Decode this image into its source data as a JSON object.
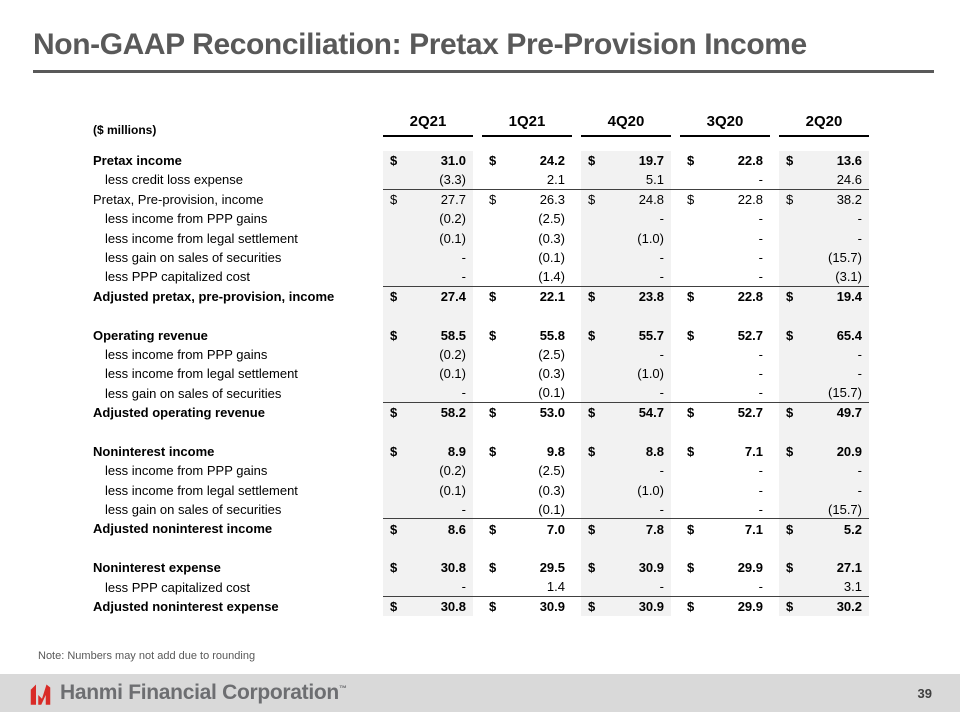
{
  "slide": {
    "title": "Non-GAAP Reconciliation: Pretax Pre-Provision Income",
    "note": "Note: Numbers may not add due to rounding",
    "page_number": "39",
    "footer_brand": "Hanmi Financial Corporation",
    "trademark": "™",
    "colors": {
      "accent_red": "#d92b27",
      "column_shade": "#f2f2f2",
      "footer_bar": "#d9d9d9",
      "title_gray": "#595959"
    },
    "icons": {
      "logo": "hanmi-logo-icon"
    }
  },
  "table": {
    "units_label": "($ millions)",
    "dollar_sign": "$",
    "columns": [
      "2Q21",
      "1Q21",
      "4Q20",
      "3Q20",
      "2Q20"
    ],
    "shaded_columns": [
      0,
      2,
      4
    ],
    "rows": [
      {
        "label": "Pretax income",
        "bold": true,
        "dollar": true,
        "values": [
          "31.0",
          "24.2",
          "19.7",
          "22.8",
          "13.6"
        ]
      },
      {
        "label": "less credit loss expense",
        "indent": true,
        "values": [
          "(3.3)",
          "2.1",
          "5.1",
          "-",
          "24.6"
        ],
        "line_below": true
      },
      {
        "label": "Pretax, Pre-provision, income",
        "dollar": true,
        "values": [
          "27.7",
          "26.3",
          "24.8",
          "22.8",
          "38.2"
        ]
      },
      {
        "label": "less income from PPP gains",
        "indent": true,
        "values": [
          "(0.2)",
          "(2.5)",
          "-",
          "-",
          "-"
        ]
      },
      {
        "label": "less income from legal settlement",
        "indent": true,
        "values": [
          "(0.1)",
          "(0.3)",
          "(1.0)",
          "-",
          "-"
        ]
      },
      {
        "label": "less gain on sales of securities",
        "indent": true,
        "values": [
          "-",
          "(0.1)",
          "-",
          "-",
          "(15.7)"
        ]
      },
      {
        "label": "less PPP capitalized cost",
        "indent": true,
        "values": [
          "-",
          "(1.4)",
          "-",
          "-",
          "(3.1)"
        ],
        "line_below": true
      },
      {
        "label": "Adjusted pretax, pre-provision, income",
        "bold": true,
        "dollar": true,
        "values": [
          "27.4",
          "22.1",
          "23.8",
          "22.8",
          "19.4"
        ]
      },
      {
        "spacer": true,
        "label": "",
        "values": [
          "",
          "",
          "",
          "",
          ""
        ]
      },
      {
        "label": "Operating revenue",
        "bold": true,
        "dollar": true,
        "values": [
          "58.5",
          "55.8",
          "55.7",
          "52.7",
          "65.4"
        ]
      },
      {
        "label": "less income from PPP gains",
        "indent": true,
        "values": [
          "(0.2)",
          "(2.5)",
          "-",
          "-",
          "-"
        ]
      },
      {
        "label": "less income from legal settlement",
        "indent": true,
        "values": [
          "(0.1)",
          "(0.3)",
          "(1.0)",
          "-",
          "-"
        ]
      },
      {
        "label": "less gain on sales of securities",
        "indent": true,
        "values": [
          "-",
          "(0.1)",
          "-",
          "-",
          "(15.7)"
        ],
        "line_below": true
      },
      {
        "label": "Adjusted operating revenue",
        "bold": true,
        "dollar": true,
        "values": [
          "58.2",
          "53.0",
          "54.7",
          "52.7",
          "49.7"
        ]
      },
      {
        "spacer": true,
        "label": "",
        "values": [
          "",
          "",
          "",
          "",
          ""
        ]
      },
      {
        "label": "Noninterest income",
        "bold": true,
        "dollar": true,
        "values": [
          "8.9",
          "9.8",
          "8.8",
          "7.1",
          "20.9"
        ]
      },
      {
        "label": "less income from PPP gains",
        "indent": true,
        "values": [
          "(0.2)",
          "(2.5)",
          "-",
          "-",
          "-"
        ]
      },
      {
        "label": "less income from legal settlement",
        "indent": true,
        "values": [
          "(0.1)",
          "(0.3)",
          "(1.0)",
          "-",
          "-"
        ]
      },
      {
        "label": "less gain on sales of securities",
        "indent": true,
        "values": [
          "-",
          "(0.1)",
          "-",
          "-",
          "(15.7)"
        ],
        "line_below": true
      },
      {
        "label": "Adjusted noninterest income",
        "bold": true,
        "dollar": true,
        "values": [
          "8.6",
          "7.0",
          "7.8",
          "7.1",
          "5.2"
        ]
      },
      {
        "spacer": true,
        "label": "",
        "values": [
          "",
          "",
          "",
          "",
          ""
        ]
      },
      {
        "label": "Noninterest expense",
        "bold": true,
        "dollar": true,
        "values": [
          "30.8",
          "29.5",
          "30.9",
          "29.9",
          "27.1"
        ]
      },
      {
        "label": "less PPP capitalized cost",
        "indent": true,
        "values": [
          "-",
          "1.4",
          "-",
          "-",
          "3.1"
        ],
        "line_below": true
      },
      {
        "label": "Adjusted noninterest expense",
        "bold": true,
        "dollar": true,
        "values": [
          "30.8",
          "30.9",
          "30.9",
          "29.9",
          "30.2"
        ]
      }
    ]
  }
}
